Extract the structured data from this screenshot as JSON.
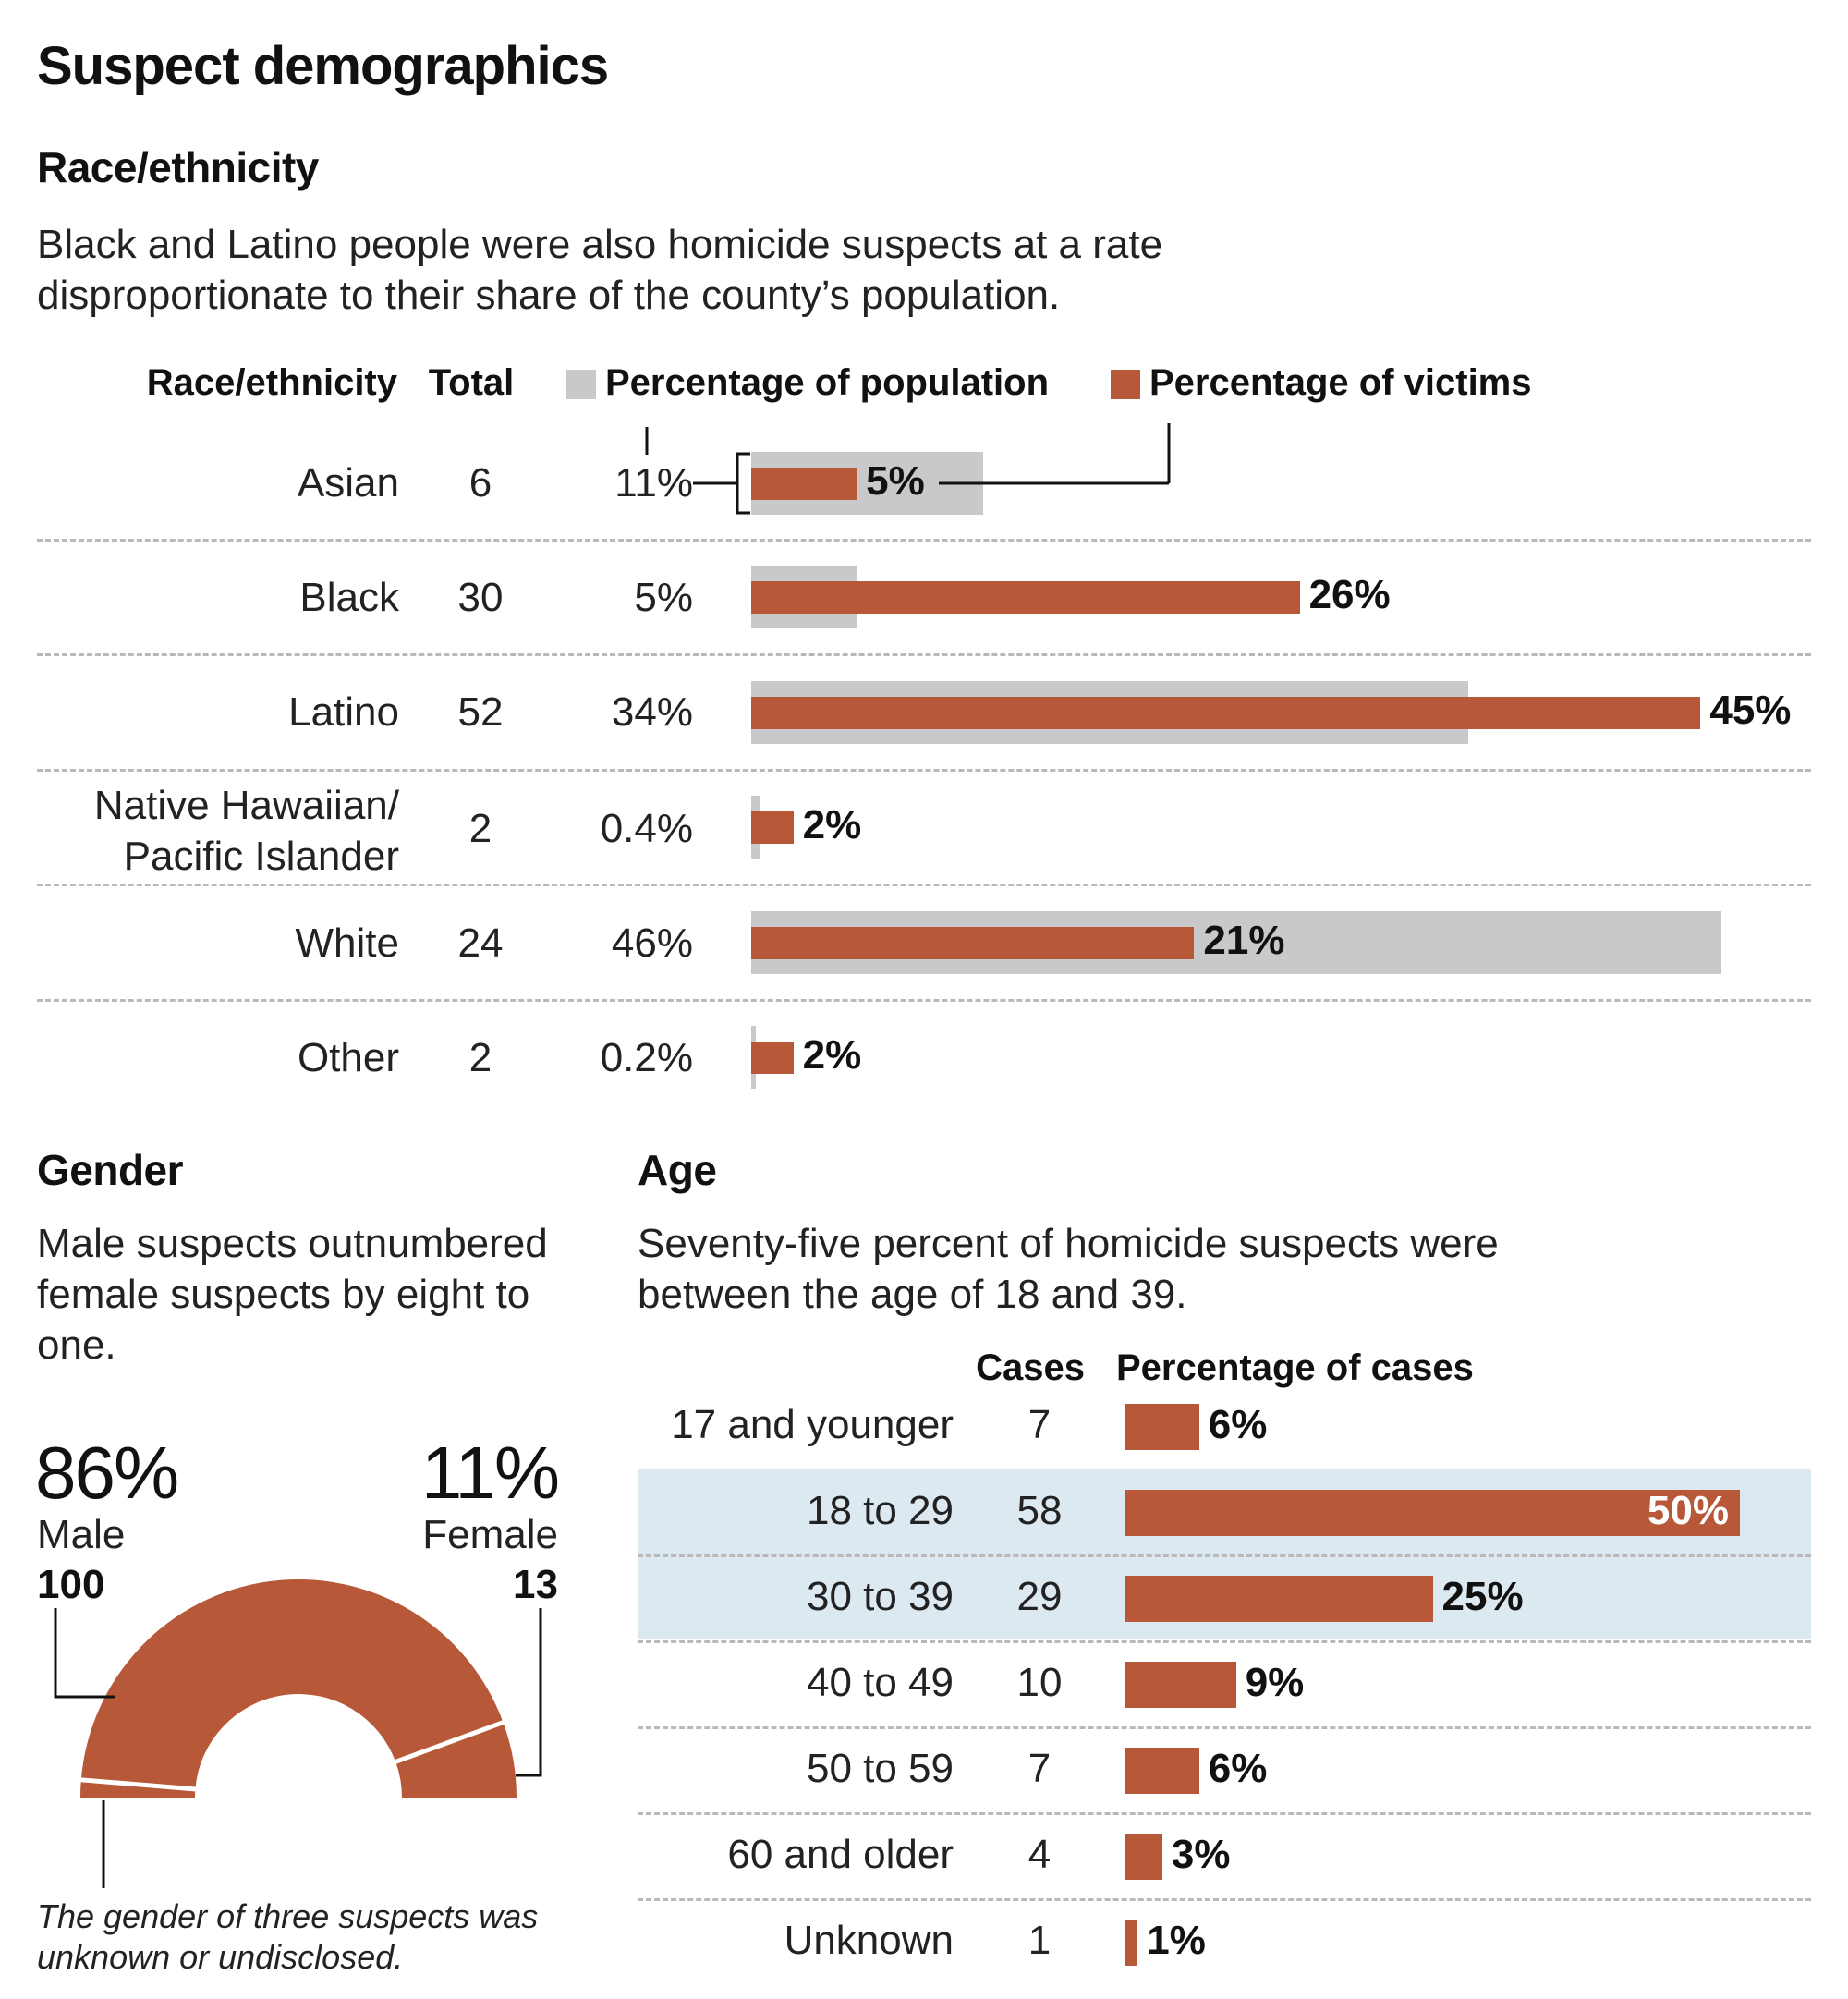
{
  "title": "Suspect demographics",
  "race": {
    "heading": "Race/ethnicity",
    "dek": "Black and Latino people were also homicide suspects at a rate disproportionate to their share of the county’s population.",
    "col_race": "Race/ethnicity",
    "col_total": "Total",
    "legend_population": "Percentage of population",
    "legend_victims": "Percentage of victims"
  },
  "gender": {
    "heading": "Gender",
    "dek": "Male suspects outnumbered female suspects by eight to one.",
    "male_pct": "86%",
    "male_label": "Male",
    "male_count": "100",
    "female_pct": "11%",
    "female_label": "Female",
    "female_count": "13",
    "note": "The gender of three suspects was unknown or undisclosed."
  },
  "age": {
    "heading": "Age",
    "dek": "Seventy-five percent of homicide suspects were between the age of 18 and 39.",
    "col_cases": "Cases",
    "col_pct": "Percentage of cases"
  },
  "colors": {
    "population": "#c9c9cb",
    "victims": "#b75838",
    "highlight": "#dde9f1"
  },
  "chart_data": [
    {
      "type": "bar",
      "title": "Race/ethnicity",
      "categories": [
        "Asian",
        "Black",
        "Latino",
        "Native Hawaiian/ Pacific Islander",
        "White",
        "Other"
      ],
      "totals": [
        "6",
        "30",
        "52",
        "2",
        "24",
        "2"
      ],
      "series": [
        {
          "name": "Percentage of population",
          "values": [
            11,
            5,
            34,
            0.4,
            46,
            0.2
          ],
          "labels": [
            "11%",
            "5%",
            "34%",
            "0.4%",
            "46%",
            "0.2%"
          ]
        },
        {
          "name": "Percentage of victims",
          "values": [
            5,
            26,
            45,
            2,
            21,
            2
          ],
          "labels": [
            "5%",
            "26%",
            "45%",
            "2%",
            "21%",
            "2%"
          ]
        }
      ],
      "xlim": [
        0,
        50
      ]
    },
    {
      "type": "pie",
      "title": "Gender",
      "categories": [
        "Male",
        "Female",
        "Unknown"
      ],
      "values": [
        100,
        13,
        3
      ],
      "percent_labels": [
        "86%",
        "11%",
        ""
      ]
    },
    {
      "type": "bar",
      "title": "Age",
      "categories": [
        "17 and younger",
        "18 to 29",
        "30 to 39",
        "40 to 49",
        "50 to 59",
        "60 and older",
        "Unknown"
      ],
      "cases": [
        "7",
        "58",
        "29",
        "10",
        "7",
        "4",
        "1"
      ],
      "values": [
        6,
        50,
        25,
        9,
        6,
        3,
        1
      ],
      "labels": [
        "6%",
        "50%",
        "25%",
        "9%",
        "6%",
        "3%",
        "1%"
      ],
      "highlighted": [
        false,
        true,
        true,
        false,
        false,
        false,
        false
      ],
      "xlim": [
        0,
        50
      ]
    }
  ]
}
